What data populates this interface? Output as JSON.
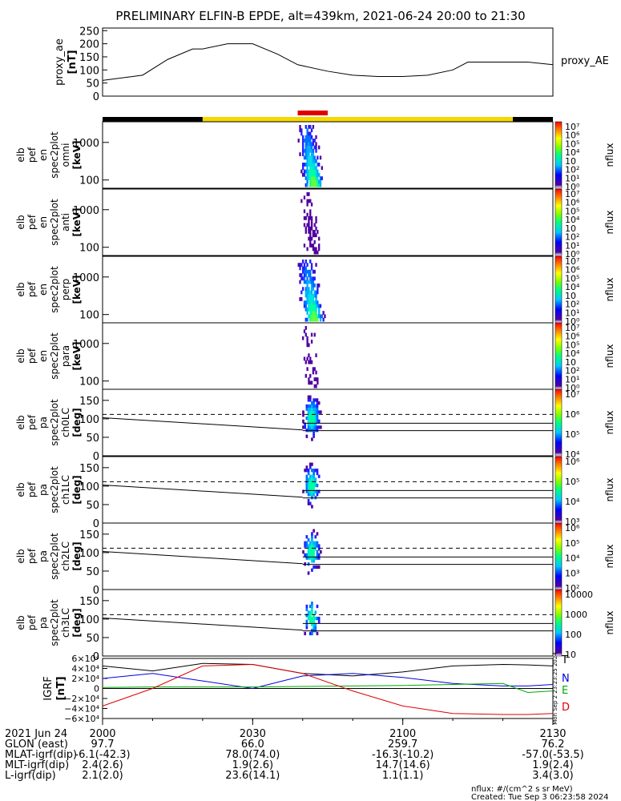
{
  "title": "PRELIMINARY ELFIN-B EPDE, alt=439km, 2021-06-24 20:00 to 21:30",
  "colors": {
    "bar_black": "#000000",
    "bar_yellow": "#f5d800",
    "bar_red": "#e00000",
    "N": "#0000dd",
    "E": "#00aa00",
    "D": "#dd0000",
    "T": "#000000"
  },
  "chart_data": [
    {
      "type": "line",
      "id": "proxy_ae",
      "ylabel": "proxy_ae [nT]",
      "legend": "proxy_AE",
      "ylim": [
        0,
        260
      ],
      "yticks": [
        0,
        50,
        100,
        150,
        200,
        250
      ],
      "xlim_min": [
        0,
        90
      ],
      "x": [
        0,
        8,
        13,
        18,
        20,
        25,
        30,
        35,
        39,
        45,
        50,
        55,
        60,
        65,
        70,
        73,
        77,
        80,
        85,
        90
      ],
      "y": [
        60,
        80,
        140,
        180,
        180,
        200,
        200,
        160,
        120,
        95,
        80,
        75,
        75,
        80,
        100,
        130,
        130,
        130,
        130,
        120
      ]
    },
    {
      "type": "heatmap",
      "id": "en-omni",
      "ylabel": [
        "elb",
        "pef",
        "en",
        "spec2plot",
        "omni",
        "[keV]"
      ],
      "yscale": "log",
      "yticks": [
        100,
        1000
      ],
      "cbar": {
        "label": "nflux",
        "ticks": [
          "10⁷",
          "10⁶",
          "10⁵",
          "10⁴",
          "10⁳",
          "10²",
          "10¹",
          "10⁰"
        ]
      },
      "intensity": 1.0
    },
    {
      "type": "heatmap",
      "id": "en-anti",
      "ylabel": [
        "elb",
        "pef",
        "en",
        "spec2plot",
        "anti",
        "[keV]"
      ],
      "yscale": "log",
      "yticks": [
        100,
        1000
      ],
      "cbar": {
        "label": "nflux",
        "ticks": [
          "10⁷",
          "10⁶",
          "10⁵",
          "10⁴",
          "10⁳",
          "10²",
          "10¹",
          "10⁰"
        ]
      },
      "intensity": 0.35
    },
    {
      "type": "heatmap",
      "id": "en-perp",
      "ylabel": [
        "elb",
        "pef",
        "en",
        "spec2plot",
        "perp",
        "[keV]"
      ],
      "yscale": "log",
      "yticks": [
        100,
        1000
      ],
      "cbar": {
        "label": "nflux",
        "ticks": [
          "10⁷",
          "10⁶",
          "10⁵",
          "10⁴",
          "10⁳",
          "10²",
          "10¹",
          "10⁰"
        ]
      },
      "intensity": 1.0
    },
    {
      "type": "heatmap",
      "id": "en-para",
      "ylabel": [
        "elb",
        "pef",
        "en",
        "spec2plot",
        "para",
        "[keV]"
      ],
      "yscale": "log",
      "yticks": [
        100,
        1000
      ],
      "cbar": {
        "label": "nflux",
        "ticks": [
          "10⁷",
          "10⁶",
          "10⁵",
          "10⁴",
          "10⁳",
          "10²",
          "10¹",
          "10⁰"
        ]
      },
      "intensity": 0.3
    },
    {
      "type": "heatmap",
      "id": "pa-ch0",
      "ylabel": [
        "elb",
        "pef",
        "pa",
        "spec2plot",
        "ch0LC",
        "[deg]"
      ],
      "yscale": "linear",
      "ylim": [
        0,
        180
      ],
      "yticks": [
        0,
        50,
        100,
        150
      ],
      "cbar": {
        "label": "nflux",
        "ticks": [
          "10⁷",
          "10⁶",
          "10⁵",
          "10⁴"
        ]
      },
      "intensity": 1.0
    },
    {
      "type": "heatmap",
      "id": "pa-ch1",
      "ylabel": [
        "elb",
        "pef",
        "pa",
        "spec2plot",
        "ch1LC",
        "[deg]"
      ],
      "yscale": "linear",
      "ylim": [
        0,
        180
      ],
      "yticks": [
        0,
        50,
        100,
        150
      ],
      "cbar": {
        "label": "nflux",
        "ticks": [
          "10⁶",
          "10⁵",
          "10⁴",
          "10³"
        ]
      },
      "intensity": 0.8
    },
    {
      "type": "heatmap",
      "id": "pa-ch2",
      "ylabel": [
        "elb",
        "pef",
        "pa",
        "spec2plot",
        "ch2LC",
        "[deg]"
      ],
      "yscale": "linear",
      "ylim": [
        0,
        180
      ],
      "yticks": [
        0,
        50,
        100,
        150
      ],
      "cbar": {
        "label": "nflux",
        "ticks": [
          "10⁶",
          "10⁵",
          "10⁴",
          "10³",
          "10²"
        ]
      },
      "intensity": 0.7
    },
    {
      "type": "heatmap",
      "id": "pa-ch3",
      "ylabel": [
        "elb",
        "pef",
        "pa",
        "spec2plot",
        "ch3LC",
        "[deg]"
      ],
      "yscale": "linear",
      "ylim": [
        0,
        180
      ],
      "yticks": [
        0,
        50,
        100,
        150
      ],
      "cbar": {
        "label": "nflux",
        "ticks": [
          "10000",
          "1000",
          "100",
          "10"
        ]
      },
      "intensity": 0.6
    },
    {
      "type": "line",
      "id": "igrf",
      "ylabel": "IGRF [nT]",
      "ylim": [
        -60000,
        60000
      ],
      "yticks": [
        "6×10⁴",
        "4×10⁴",
        "2×10⁴",
        "0",
        "−2×10⁴",
        "−4×10⁴",
        "−6×10⁴"
      ],
      "legend": [
        "T",
        "N",
        "E",
        "D"
      ],
      "sidenote": "Mon Sep 2 23:23:25 2024",
      "x": [
        0,
        10,
        20,
        30,
        40,
        50,
        60,
        70,
        80,
        85,
        90
      ],
      "series": [
        {
          "name": "T",
          "values": [
            45000,
            35000,
            50000,
            48000,
            30000,
            25000,
            33000,
            45000,
            48000,
            47000,
            45000
          ]
        },
        {
          "name": "N",
          "values": [
            20000,
            30000,
            15000,
            0,
            25000,
            30000,
            22000,
            10000,
            5000,
            5000,
            8000
          ]
        },
        {
          "name": "E",
          "values": [
            2000,
            3000,
            3000,
            3000,
            4000,
            5000,
            6000,
            8000,
            10000,
            -8000,
            -5000
          ]
        },
        {
          "name": "D",
          "values": [
            -35000,
            0,
            45000,
            48000,
            30000,
            -5000,
            -35000,
            -50000,
            -52000,
            -52000,
            -50000
          ]
        }
      ]
    }
  ],
  "xticks": [
    "2000",
    "2030",
    "2100",
    "2130"
  ],
  "footer_rows": [
    {
      "label": "2021 Jun 24",
      "vals": [
        "2000",
        "2030",
        "2100",
        "2130"
      ]
    },
    {
      "label": "GLON (east)",
      "vals": [
        "97.7",
        "66.0",
        "259.7",
        "76.2"
      ]
    },
    {
      "label": "MLAT-igrf(dip)",
      "vals": [
        "-6.1(-42.3)",
        "78.0(74.0)",
        "-16.3(-10.2)",
        "-57.0(-53.5)"
      ]
    },
    {
      "label": "MLT-igrf(dip)",
      "vals": [
        "2.4(2.6)",
        "1.9(2.6)",
        "14.7(14.6)",
        "1.9(2.4)"
      ]
    },
    {
      "label": "L-igrf(dip)",
      "vals": [
        "2.1(2.0)",
        "23.6(14.1)",
        "1.1(1.1)",
        "3.4(3.0)"
      ]
    }
  ],
  "footer_units": "nflux: #/(cm^2 s sr MeV)",
  "footer_created": "Created: Tue Sep  3 06:23:58 2024"
}
